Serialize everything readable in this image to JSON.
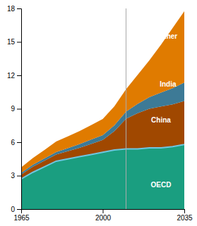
{
  "chart_data": {
    "type": "area",
    "stacked": true,
    "grid": false,
    "x": [
      1965,
      1970,
      1975,
      1980,
      1985,
      1990,
      1995,
      2000,
      2005,
      2010,
      2015,
      2020,
      2025,
      2030,
      2035
    ],
    "xlim": [
      1965,
      2035
    ],
    "xticks": [
      1965,
      2000,
      2035
    ],
    "ylim": [
      0,
      18
    ],
    "yticks": [
      0,
      3,
      6,
      9,
      12,
      15,
      18
    ],
    "series": [
      {
        "type": "area",
        "color": "#1a9e80",
        "values": [
          2.7,
          3.3,
          3.8,
          4.3,
          4.5,
          4.7,
          4.9,
          5.1,
          5.3,
          5.4,
          5.4,
          5.5,
          5.5,
          5.6,
          5.8
        ]
      },
      {
        "type": "area",
        "color": "#a04800",
        "values": [
          0.4,
          0.5,
          0.55,
          0.6,
          0.7,
          0.8,
          0.95,
          1.1,
          1.7,
          2.7,
          3.2,
          3.5,
          3.7,
          3.8,
          3.9
        ]
      },
      {
        "type": "area",
        "color": "#3d7a96",
        "values": [
          0.15,
          0.18,
          0.2,
          0.22,
          0.27,
          0.32,
          0.38,
          0.43,
          0.52,
          0.65,
          0.85,
          1.05,
          1.25,
          1.45,
          1.65
        ]
      },
      {
        "type": "area",
        "color": "#e07b00",
        "values": [
          0.5,
          0.6,
          0.75,
          0.95,
          1.05,
          1.18,
          1.3,
          1.45,
          1.7,
          2.0,
          2.6,
          3.3,
          4.3,
          5.4,
          6.4
        ]
      },
      {
        "type": "line",
        "color": "#6ec6e0",
        "values": [
          2.7,
          3.3,
          3.8,
          4.3,
          4.5,
          4.7,
          4.9,
          5.1,
          5.3,
          5.4,
          5.4,
          5.5,
          5.5,
          5.6,
          5.8
        ]
      }
    ],
    "vlines": [
      {
        "x": 2010,
        "color": "#aaaaaa"
      }
    ],
    "annotations": [
      {
        "text": "Other",
        "x": 2028,
        "y": 15.5,
        "color": "white"
      },
      {
        "text": "India",
        "x": 2028,
        "y": 11.2,
        "color": "white"
      },
      {
        "text": "China",
        "x": 2025,
        "y": 8.0,
        "color": "white"
      },
      {
        "text": "OECD",
        "x": 2025,
        "y": 2.2,
        "color": "white"
      }
    ]
  }
}
